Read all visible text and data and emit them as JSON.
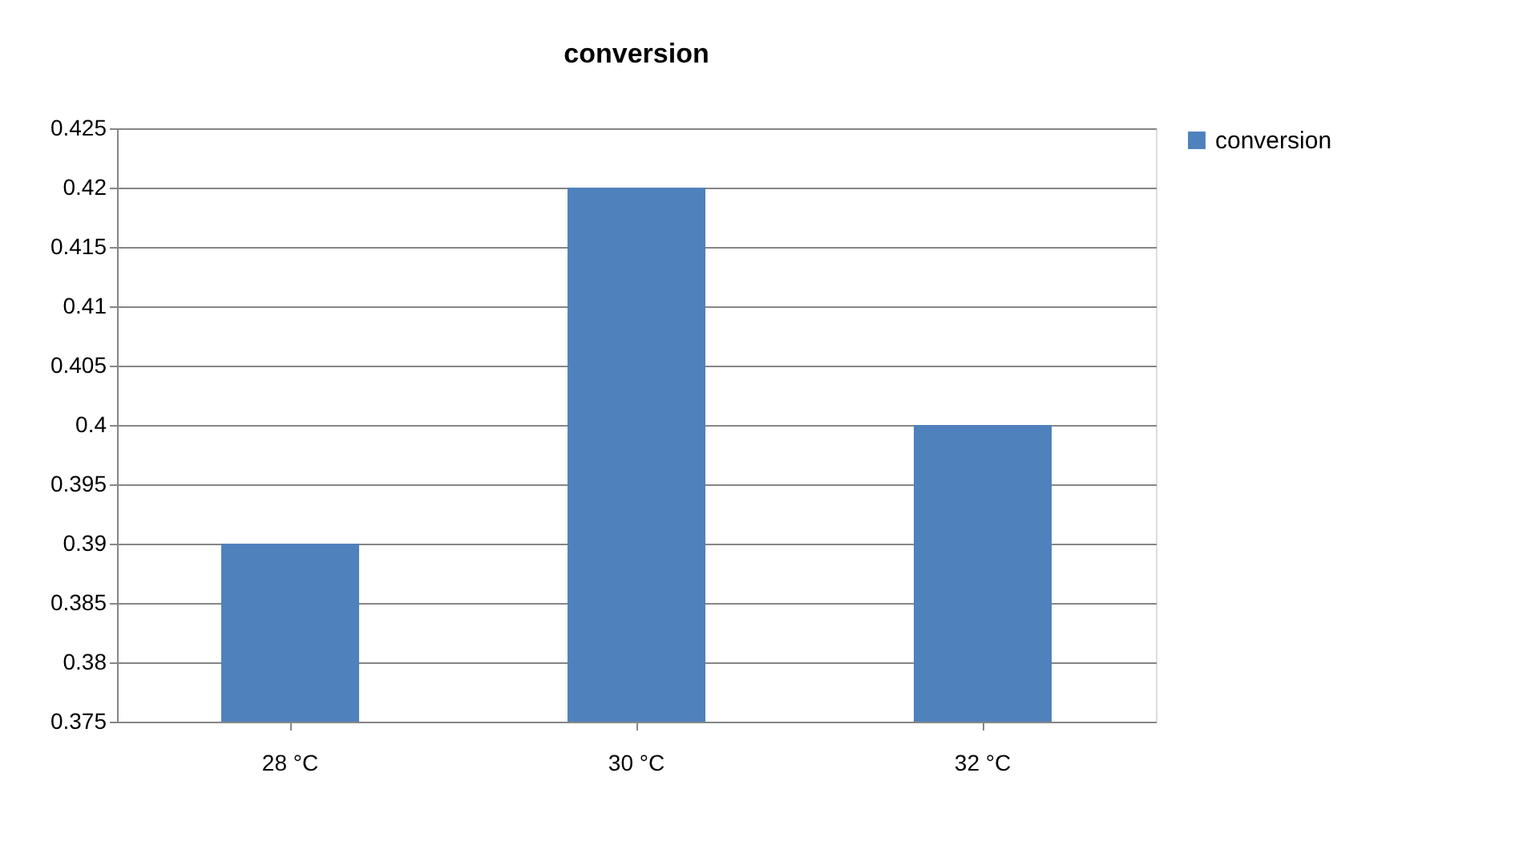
{
  "chart_data": {
    "type": "bar",
    "title": "conversion",
    "categories": [
      "28 °C",
      "30 °C",
      "32 °C"
    ],
    "series": [
      {
        "name": "conversion",
        "color": "#4f81bd",
        "values": [
          0.39,
          0.42,
          0.4
        ]
      }
    ],
    "ylim": [
      0.375,
      0.425
    ],
    "yticks": [
      0.375,
      0.38,
      0.385,
      0.39,
      0.395,
      0.4,
      0.405,
      0.41,
      0.415,
      0.42,
      0.425
    ],
    "grid": "y",
    "legend": "right"
  }
}
